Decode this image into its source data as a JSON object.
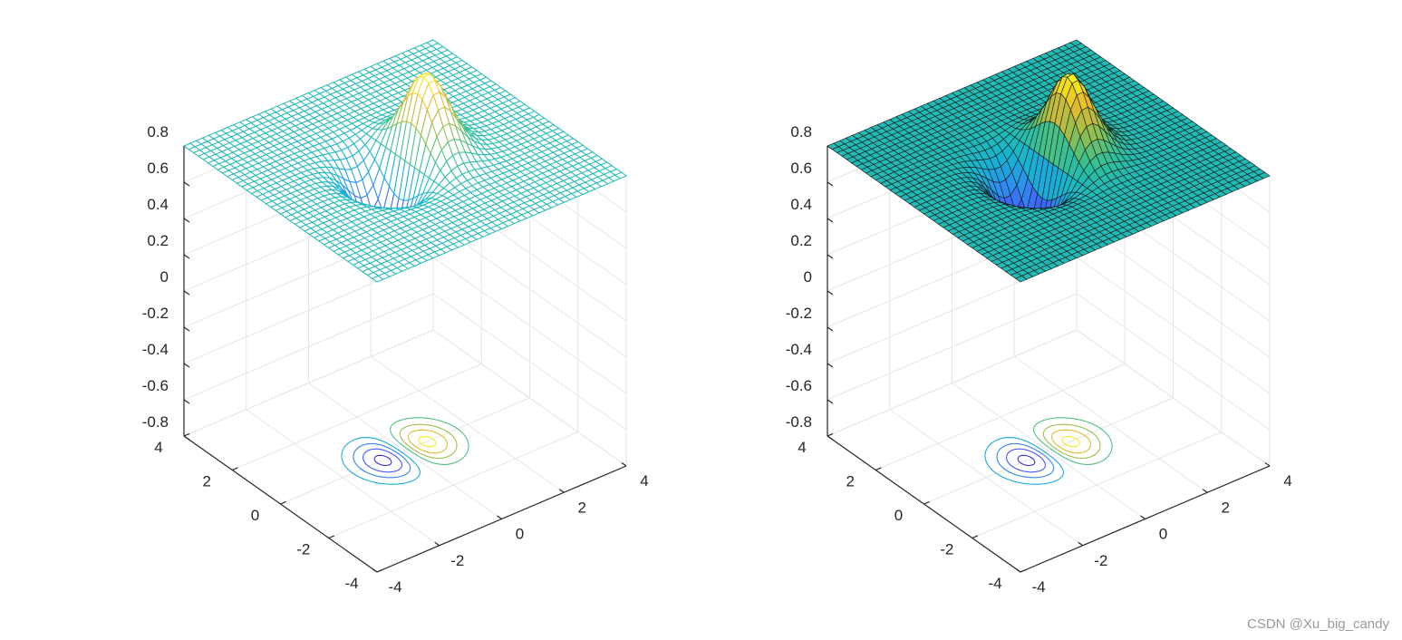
{
  "watermark": "CSDN @Xu_big_candy",
  "chart_data": [
    {
      "type": "surface-mesh",
      "function": "z = x*exp(-x^2 - y^2)",
      "plot_style": "meshc",
      "x_range": [
        -4,
        4
      ],
      "y_range": [
        -4,
        4
      ],
      "grid_points": 41,
      "zlim": [
        -0.8,
        0.8
      ],
      "z_peak": 0.43,
      "z_min": -0.43,
      "contour_levels": [
        -0.4,
        -0.3,
        -0.2,
        -0.1,
        0.1,
        0.2,
        0.3,
        0.4
      ],
      "colormap": "parula",
      "colors": [
        "#3e26a8",
        "#4850f5",
        "#2d8cf2",
        "#14b5d2",
        "#2ec09a",
        "#92bf4f",
        "#e5b92d",
        "#f9fb15"
      ],
      "x_ticks": [
        "-4",
        "-2",
        "0",
        "2",
        "4"
      ],
      "y_ticks": [
        "-4",
        "-2",
        "0",
        "2",
        "4"
      ],
      "z_ticks": [
        "-0.8",
        "-0.6",
        "-0.4",
        "-0.2",
        "0",
        "0.2",
        "0.4",
        "0.6",
        "0.8"
      ],
      "grid": true
    },
    {
      "type": "surface",
      "function": "z = x*exp(-x^2 - y^2)",
      "plot_style": "surfc",
      "x_range": [
        -4,
        4
      ],
      "y_range": [
        -4,
        4
      ],
      "grid_points": 41,
      "zlim": [
        -0.8,
        0.8
      ],
      "z_peak": 0.43,
      "z_min": -0.43,
      "contour_levels": [
        -0.4,
        -0.3,
        -0.2,
        -0.1,
        0.1,
        0.2,
        0.3,
        0.4
      ],
      "colormap": "parula",
      "colors": [
        "#3e26a8",
        "#4850f5",
        "#2d8cf2",
        "#14b5d2",
        "#2ec09a",
        "#92bf4f",
        "#e5b92d",
        "#f9fb15"
      ],
      "x_ticks": [
        "-4",
        "-2",
        "0",
        "2",
        "4"
      ],
      "y_ticks": [
        "-4",
        "-2",
        "0",
        "2",
        "4"
      ],
      "z_ticks": [
        "-0.8",
        "-0.6",
        "-0.4",
        "-0.2",
        "0",
        "0.2",
        "0.4",
        "0.6",
        "0.8"
      ],
      "grid": true
    }
  ]
}
